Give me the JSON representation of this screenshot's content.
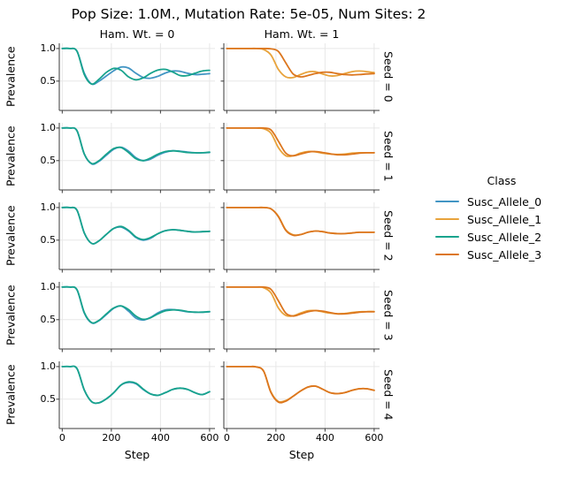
{
  "chart_data": {
    "type": "line",
    "title": "Pop Size: 1.0M., Mutation Rate: 5e-05, Num Sites: 2",
    "col_headers": [
      "Ham. Wt. = 0",
      "Ham. Wt. = 1"
    ],
    "row_labels": [
      "Seed = 0",
      "Seed = 1",
      "Seed = 2",
      "Seed = 3",
      "Seed = 4"
    ],
    "xlabel": "Step",
    "ylabel": "Prevalence",
    "xlim": [
      -12,
      622
    ],
    "ylim": [
      0.05,
      1.08
    ],
    "xticks": {
      "values": [
        0,
        200,
        400,
        600
      ],
      "labels": [
        "0",
        "200",
        "400",
        "600"
      ]
    },
    "yticks": {
      "values": [
        1.0,
        0.5
      ],
      "labels": [
        "1.0",
        "0.5"
      ]
    },
    "grid": true,
    "grid_color": "#e7e7e7",
    "spine_color": "#3a3a3a",
    "palette": [
      "#4295c4",
      "#e8a33c",
      "#18a38d",
      "#dc761e"
    ],
    "legend": {
      "title": "Class",
      "position": "right",
      "entries": [
        {
          "label": "Susc_Allele_0",
          "color": "#4295c4"
        },
        {
          "label": "Susc_Allele_1",
          "color": "#e8a33c"
        },
        {
          "label": "Susc_Allele_2",
          "color": "#18a38d"
        },
        {
          "label": "Susc_Allele_3",
          "color": "#dc761e"
        }
      ]
    },
    "x": [
      0,
      30,
      60,
      90,
      120,
      150,
      180,
      210,
      240,
      270,
      300,
      330,
      360,
      390,
      420,
      450,
      480,
      510,
      540,
      570,
      600
    ],
    "facets": [
      {
        "row": 0,
        "col": 0,
        "series": [
          {
            "name": "Susc_Allele_0",
            "class_index": 0,
            "y": [
              1.0,
              1.0,
              0.96,
              0.62,
              0.455,
              0.5,
              0.58,
              0.66,
              0.715,
              0.7,
              0.62,
              0.555,
              0.545,
              0.575,
              0.625,
              0.655,
              0.65,
              0.62,
              0.6,
              0.605,
              0.615
            ]
          },
          {
            "name": "Susc_Allele_2",
            "class_index": 2,
            "y": [
              1.0,
              1.0,
              0.96,
              0.6,
              0.455,
              0.53,
              0.635,
              0.695,
              0.665,
              0.565,
              0.52,
              0.55,
              0.62,
              0.67,
              0.68,
              0.64,
              0.585,
              0.585,
              0.62,
              0.655,
              0.665
            ]
          }
        ]
      },
      {
        "row": 0,
        "col": 1,
        "series": [
          {
            "name": "Susc_Allele_1",
            "class_index": 1,
            "y": [
              1.0,
              1.0,
              1.0,
              1.0,
              1.0,
              0.985,
              0.9,
              0.68,
              0.565,
              0.555,
              0.6,
              0.64,
              0.645,
              0.61,
              0.58,
              0.585,
              0.615,
              0.645,
              0.655,
              0.645,
              0.63
            ]
          },
          {
            "name": "Susc_Allele_3",
            "class_index": 3,
            "y": [
              1.0,
              1.0,
              1.0,
              1.0,
              1.0,
              1.0,
              0.995,
              0.955,
              0.78,
              0.61,
              0.565,
              0.585,
              0.615,
              0.635,
              0.635,
              0.615,
              0.6,
              0.595,
              0.6,
              0.61,
              0.615
            ]
          }
        ]
      },
      {
        "row": 1,
        "col": 0,
        "series": [
          {
            "name": "Susc_Allele_0",
            "class_index": 0,
            "y": [
              1.0,
              1.0,
              0.96,
              0.6,
              0.45,
              0.49,
              0.585,
              0.675,
              0.705,
              0.645,
              0.545,
              0.5,
              0.525,
              0.585,
              0.63,
              0.65,
              0.645,
              0.63,
              0.62,
              0.62,
              0.625
            ]
          },
          {
            "name": "Susc_Allele_2",
            "class_index": 2,
            "y": [
              1.0,
              1.0,
              0.96,
              0.6,
              0.455,
              0.5,
              0.6,
              0.685,
              0.7,
              0.625,
              0.53,
              0.5,
              0.54,
              0.6,
              0.64,
              0.65,
              0.64,
              0.625,
              0.62,
              0.62,
              0.63
            ]
          }
        ]
      },
      {
        "row": 1,
        "col": 1,
        "series": [
          {
            "name": "Susc_Allele_1",
            "class_index": 1,
            "y": [
              1.0,
              1.0,
              1.0,
              1.0,
              1.0,
              0.99,
              0.92,
              0.7,
              0.575,
              0.575,
              0.615,
              0.64,
              0.635,
              0.615,
              0.6,
              0.595,
              0.6,
              0.615,
              0.62,
              0.62,
              0.62
            ]
          },
          {
            "name": "Susc_Allele_3",
            "class_index": 3,
            "y": [
              1.0,
              1.0,
              1.0,
              1.0,
              1.0,
              1.0,
              0.97,
              0.8,
              0.615,
              0.575,
              0.6,
              0.63,
              0.64,
              0.625,
              0.605,
              0.59,
              0.59,
              0.6,
              0.615,
              0.62,
              0.62
            ]
          }
        ]
      },
      {
        "row": 2,
        "col": 0,
        "series": [
          {
            "name": "Susc_Allele_0",
            "class_index": 0,
            "y": [
              1.0,
              1.0,
              0.96,
              0.61,
              0.45,
              0.49,
              0.59,
              0.68,
              0.7,
              0.64,
              0.54,
              0.5,
              0.53,
              0.6,
              0.645,
              0.66,
              0.65,
              0.635,
              0.625,
              0.63,
              0.635
            ]
          },
          {
            "name": "Susc_Allele_2",
            "class_index": 2,
            "y": [
              1.0,
              1.0,
              0.96,
              0.61,
              0.45,
              0.49,
              0.59,
              0.68,
              0.71,
              0.65,
              0.55,
              0.51,
              0.54,
              0.6,
              0.645,
              0.66,
              0.65,
              0.635,
              0.625,
              0.63,
              0.635
            ]
          }
        ]
      },
      {
        "row": 2,
        "col": 1,
        "series": [
          {
            "name": "Susc_Allele_1",
            "class_index": 1,
            "y": [
              1.0,
              1.0,
              1.0,
              1.0,
              1.0,
              1.0,
              0.98,
              0.868,
              0.658,
              0.583,
              0.585,
              0.62,
              0.64,
              0.63,
              0.61,
              0.6,
              0.6,
              0.61,
              0.62,
              0.62,
              0.62
            ]
          },
          {
            "name": "Susc_Allele_3",
            "class_index": 3,
            "y": [
              1.0,
              1.0,
              1.0,
              1.0,
              1.0,
              1.0,
              0.98,
              0.86,
              0.65,
              0.575,
              0.585,
              0.62,
              0.64,
              0.63,
              0.61,
              0.6,
              0.6,
              0.61,
              0.62,
              0.62,
              0.62
            ]
          }
        ]
      },
      {
        "row": 3,
        "col": 0,
        "series": [
          {
            "name": "Susc_Allele_0",
            "class_index": 0,
            "y": [
              1.0,
              1.0,
              0.96,
              0.6,
              0.45,
              0.485,
              0.58,
              0.675,
              0.71,
              0.63,
              0.525,
              0.495,
              0.535,
              0.605,
              0.65,
              0.655,
              0.64,
              0.62,
              0.615,
              0.615,
              0.62
            ]
          },
          {
            "name": "Susc_Allele_2",
            "class_index": 2,
            "y": [
              1.0,
              1.0,
              0.96,
              0.61,
              0.455,
              0.49,
              0.59,
              0.68,
              0.71,
              0.655,
              0.555,
              0.505,
              0.53,
              0.59,
              0.635,
              0.65,
              0.645,
              0.625,
              0.615,
              0.615,
              0.625
            ]
          }
        ]
      },
      {
        "row": 3,
        "col": 1,
        "series": [
          {
            "name": "Susc_Allele_1",
            "class_index": 1,
            "y": [
              1.0,
              1.0,
              1.0,
              1.0,
              1.0,
              0.99,
              0.91,
              0.68,
              0.565,
              0.56,
              0.6,
              0.635,
              0.64,
              0.62,
              0.6,
              0.59,
              0.595,
              0.61,
              0.62,
              0.625,
              0.625
            ]
          },
          {
            "name": "Susc_Allele_3",
            "class_index": 3,
            "y": [
              1.0,
              1.0,
              1.0,
              1.0,
              1.0,
              1.0,
              0.965,
              0.79,
              0.6,
              0.555,
              0.585,
              0.62,
              0.64,
              0.63,
              0.61,
              0.59,
              0.59,
              0.6,
              0.615,
              0.62,
              0.62
            ]
          }
        ]
      },
      {
        "row": 4,
        "col": 0,
        "series": [
          {
            "name": "Susc_Allele_0",
            "class_index": 0,
            "y": [
              1.0,
              1.0,
              0.97,
              0.64,
              0.46,
              0.445,
              0.505,
              0.6,
              0.72,
              0.757,
              0.737,
              0.647,
              0.58,
              0.56,
              0.6,
              0.65,
              0.67,
              0.65,
              0.6,
              0.57,
              0.615
            ]
          },
          {
            "name": "Susc_Allele_2",
            "class_index": 2,
            "y": [
              1.0,
              1.0,
              0.97,
              0.64,
              0.46,
              0.445,
              0.505,
              0.6,
              0.72,
              0.765,
              0.745,
              0.655,
              0.58,
              0.56,
              0.6,
              0.65,
              0.67,
              0.65,
              0.6,
              0.57,
              0.615
            ]
          }
        ]
      },
      {
        "row": 4,
        "col": 1,
        "series": [
          {
            "name": "Susc_Allele_1",
            "class_index": 1,
            "y": [
              1.0,
              1.0,
              1.0,
              1.0,
              0.995,
              0.93,
              0.61,
              0.465,
              0.48,
              0.545,
              0.625,
              0.685,
              0.7,
              0.655,
              0.6,
              0.585,
              0.6,
              0.635,
              0.66,
              0.66,
              0.635
            ]
          },
          {
            "name": "Susc_Allele_3",
            "class_index": 3,
            "y": [
              1.0,
              1.0,
              1.0,
              1.0,
              0.995,
              0.93,
              0.6,
              0.455,
              0.47,
              0.545,
              0.625,
              0.685,
              0.7,
              0.655,
              0.6,
              0.585,
              0.6,
              0.635,
              0.66,
              0.66,
              0.635
            ]
          }
        ]
      }
    ]
  }
}
